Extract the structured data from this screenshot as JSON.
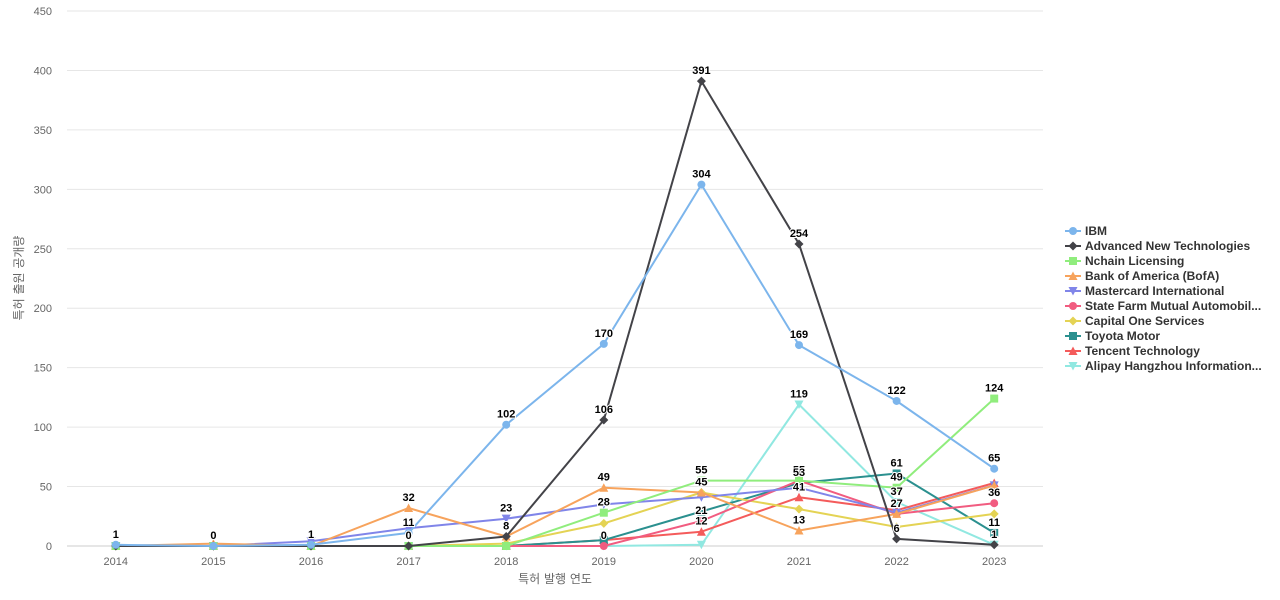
{
  "chart_data": {
    "type": "line",
    "xlabel": "특허 발행 연도",
    "ylabel": "특허 출원 공개량",
    "ylim": [
      0,
      450
    ],
    "yticks": [
      0,
      50,
      100,
      150,
      200,
      250,
      300,
      350,
      400,
      450
    ],
    "x": [
      "2014",
      "2015",
      "2016",
      "2017",
      "2018",
      "2019",
      "2020",
      "2021",
      "2022",
      "2023"
    ],
    "grid": "horizontal",
    "legend_position": "right",
    "series": [
      {
        "name": "IBM",
        "color": "#7cb5ec",
        "marker": "circle",
        "values": [
          1,
          0,
          1,
          11,
          102,
          170,
          304,
          169,
          122,
          65
        ],
        "labeled": [
          true,
          true,
          true,
          true,
          true,
          true,
          true,
          true,
          true,
          true
        ]
      },
      {
        "name": "Advanced New Technologies",
        "color": "#434348",
        "marker": "diamond",
        "values": [
          0,
          0,
          0,
          0,
          8,
          106,
          391,
          254,
          6,
          1
        ],
        "labeled": [
          false,
          false,
          false,
          true,
          true,
          true,
          true,
          true,
          true,
          true
        ]
      },
      {
        "name": "Nchain Licensing",
        "color": "#90ed7d",
        "marker": "square",
        "values": [
          0,
          0,
          0,
          0,
          0,
          28,
          55,
          55,
          49,
          124
        ],
        "labeled": [
          false,
          false,
          false,
          false,
          false,
          true,
          true,
          true,
          true,
          true
        ]
      },
      {
        "name": "Bank of America (BofA)",
        "color": "#f7a35c",
        "marker": "triangle",
        "values": [
          0,
          2,
          0,
          32,
          8,
          49,
          45,
          13,
          27,
          51
        ],
        "labeled": [
          false,
          false,
          false,
          true,
          false,
          true,
          true,
          true,
          true,
          false
        ]
      },
      {
        "name": "Mastercard International",
        "color": "#8085e9",
        "marker": "triangle-down",
        "values": [
          0,
          0,
          4,
          15,
          23,
          35,
          41,
          49,
          28,
          51
        ],
        "labeled": [
          false,
          false,
          false,
          false,
          true,
          false,
          false,
          false,
          false,
          false
        ]
      },
      {
        "name": "State Farm Mutual Automobil...",
        "color": "#f15c80",
        "marker": "circle",
        "values": [
          0,
          0,
          0,
          0,
          0,
          0,
          21,
          55,
          27,
          36
        ],
        "labeled": [
          false,
          false,
          false,
          false,
          false,
          true,
          true,
          false,
          false,
          true
        ]
      },
      {
        "name": "Capital One Services",
        "color": "#e4d354",
        "marker": "diamond",
        "values": [
          0,
          0,
          0,
          0,
          2,
          19,
          45,
          31,
          16,
          27
        ],
        "labeled": [
          false,
          false,
          false,
          false,
          false,
          false,
          false,
          false,
          false,
          false
        ]
      },
      {
        "name": "Toyota Motor",
        "color": "#2b908f",
        "marker": "square",
        "values": [
          0,
          0,
          0,
          0,
          0,
          5,
          29,
          53,
          61,
          11
        ],
        "labeled": [
          false,
          false,
          false,
          false,
          false,
          false,
          false,
          true,
          true,
          true
        ]
      },
      {
        "name": "Tencent Technology",
        "color": "#f45b5b",
        "marker": "triangle",
        "values": [
          0,
          0,
          0,
          0,
          0,
          5,
          12,
          41,
          30,
          53
        ],
        "labeled": [
          false,
          false,
          false,
          false,
          false,
          false,
          true,
          true,
          false,
          false
        ]
      },
      {
        "name": "Alipay Hangzhou Information...",
        "color": "#91e8e1",
        "marker": "triangle-down",
        "values": [
          0,
          0,
          0,
          0,
          0,
          0,
          1,
          119,
          37,
          1
        ],
        "labeled": [
          false,
          false,
          false,
          false,
          false,
          false,
          false,
          true,
          true,
          false
        ]
      }
    ]
  }
}
